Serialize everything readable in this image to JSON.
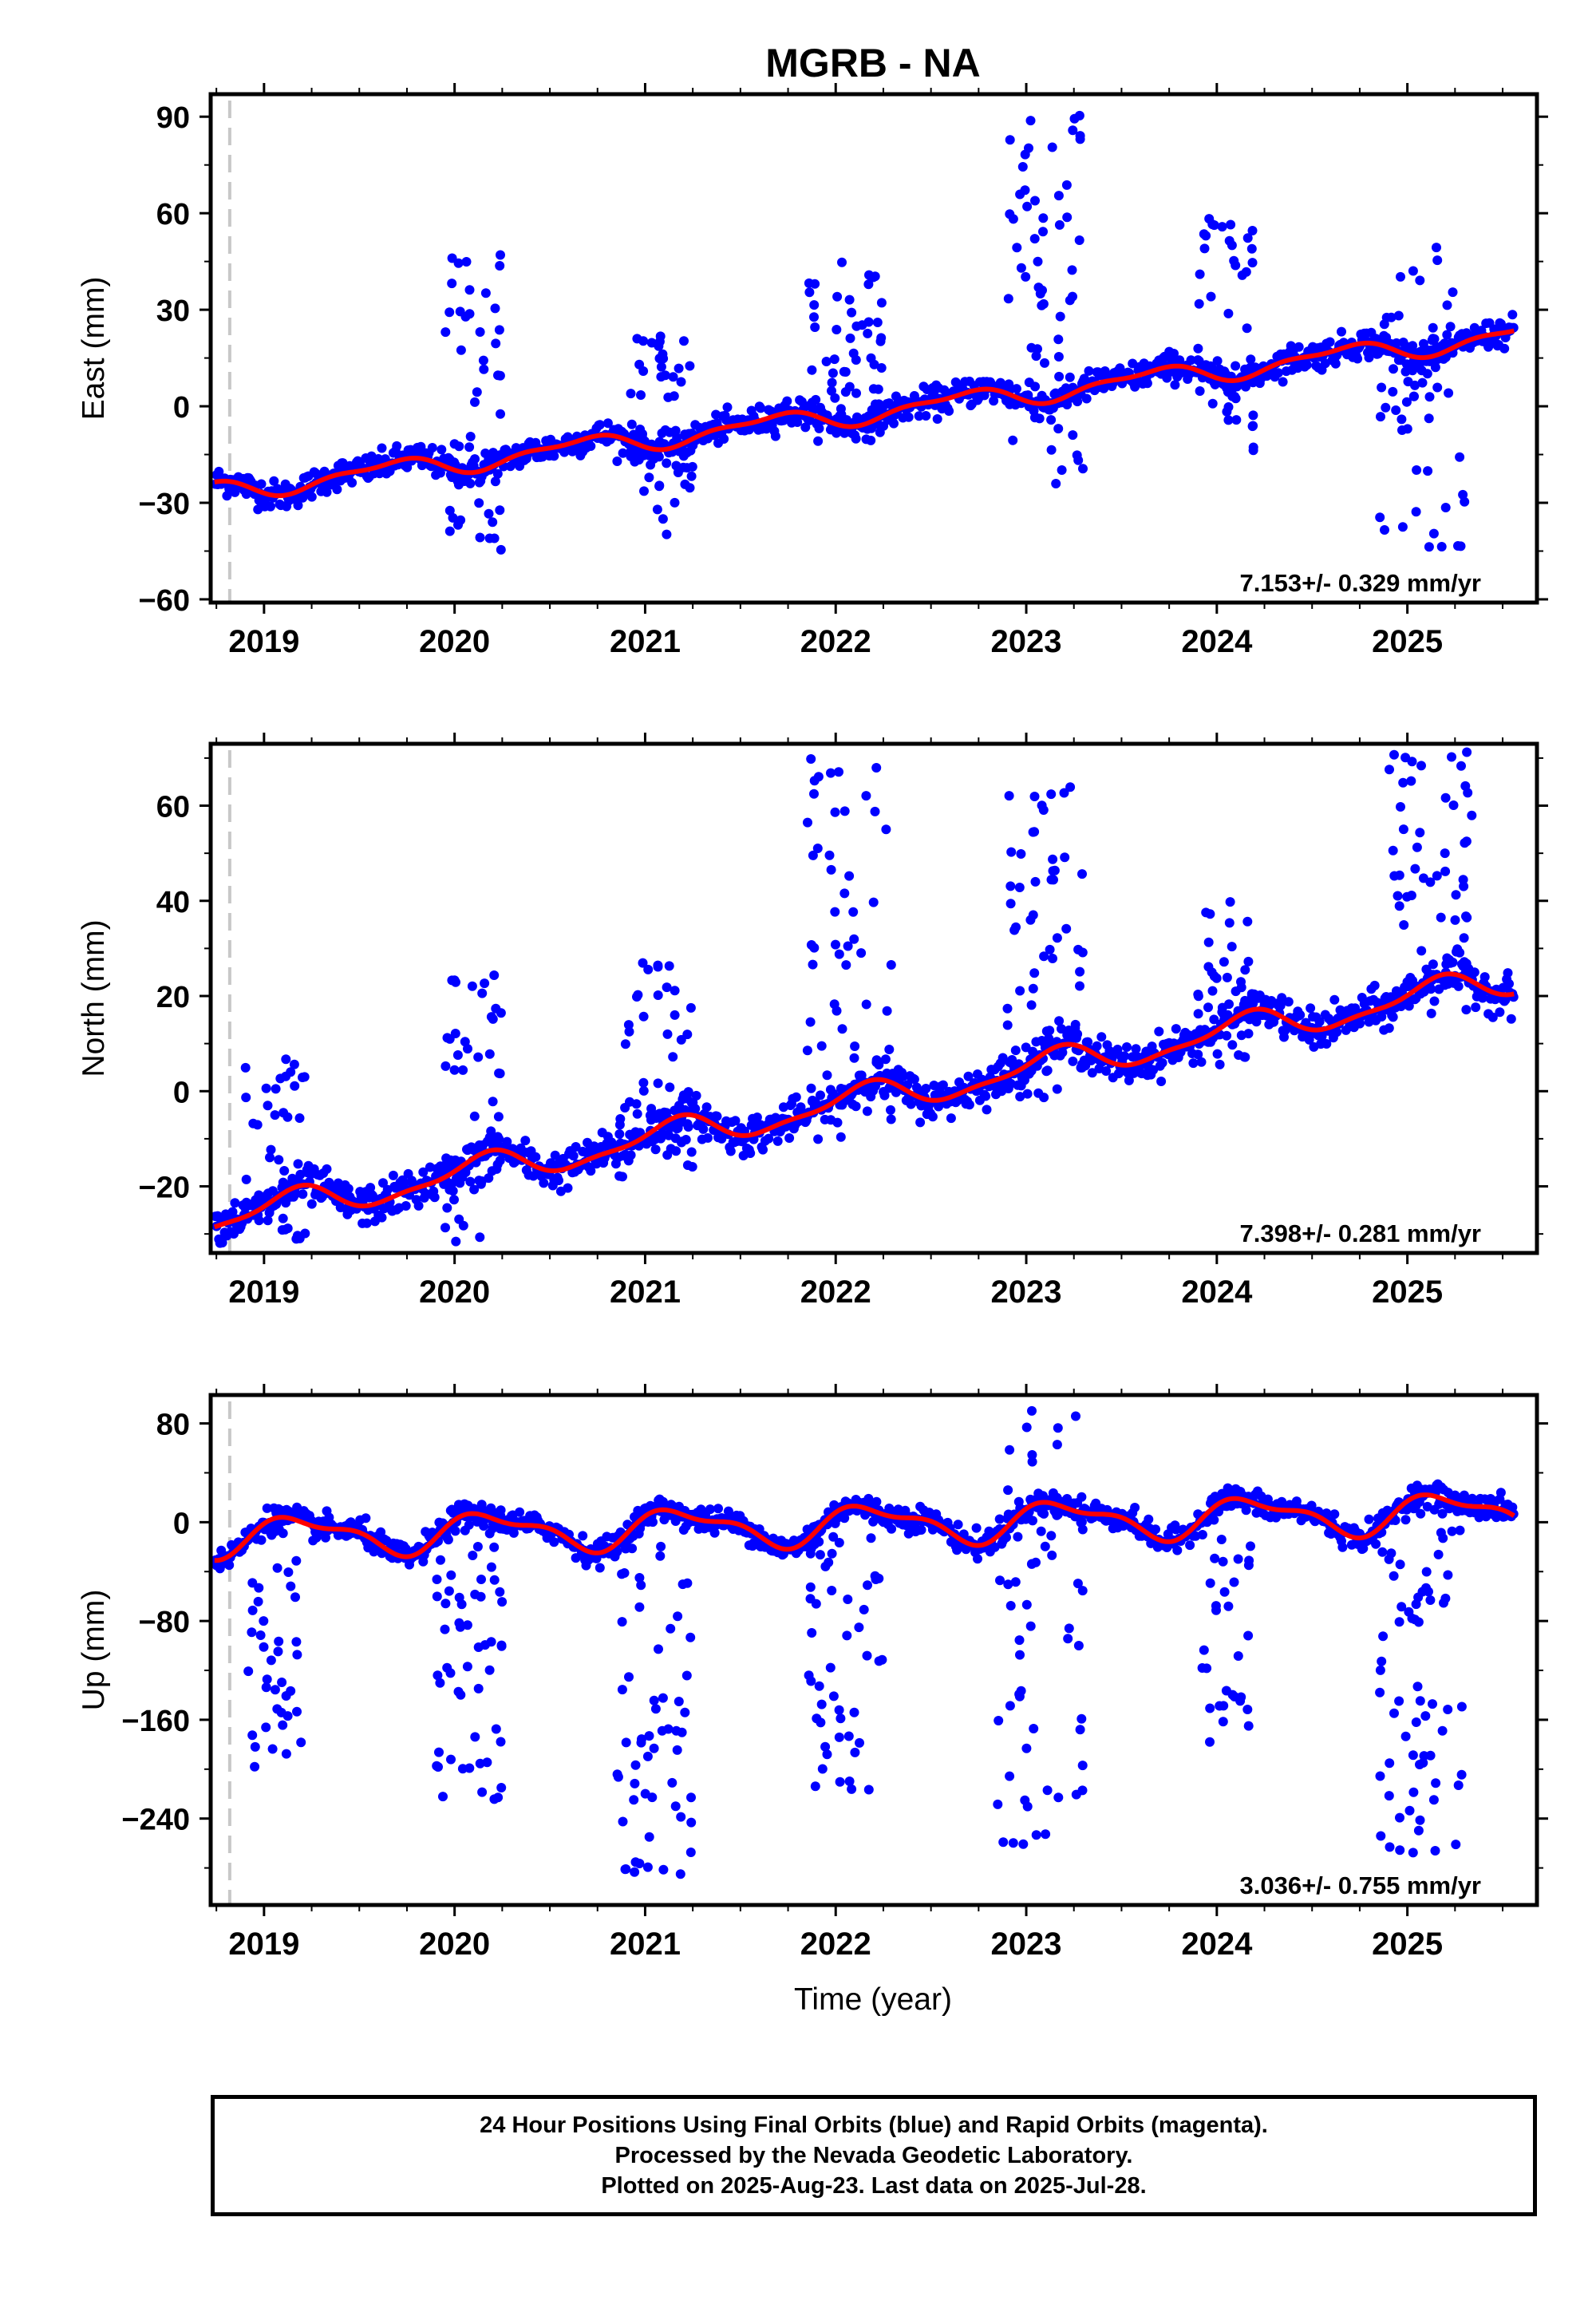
{
  "title": "MGRB - NA",
  "xlabel": "Time (year)",
  "colors": {
    "final_orbits": "#0000ff",
    "model": "#ff0000",
    "marker_line": "#c8c8c8"
  },
  "chart_data": [
    {
      "type": "scatter",
      "component": "East",
      "ylabel": "East (mm)",
      "xlim": [
        2018.72,
        2025.68
      ],
      "ylim": [
        -61,
        97
      ],
      "yticks": [
        -60,
        -30,
        0,
        30,
        60,
        90
      ],
      "xticks": [
        2019,
        2020,
        2021,
        2022,
        2023,
        2024,
        2025
      ],
      "reference_line_x": 2018.82,
      "rate_label": "7.153+/- 0.329 mm/yr",
      "rate": 7.153,
      "seasonal": {
        "intercept": -26.5,
        "amp1": 2.8,
        "phase1": 0.6,
        "amp2": 1.2,
        "phase2": 1.3
      },
      "series": [
        {
          "name": "Final Orbits",
          "color": "blue",
          "noise": 2.2,
          "bursts": [
            {
              "start": 2019.95,
              "end": 2020.25,
              "range": [
                -45,
                48
              ],
              "count": 45
            },
            {
              "start": 2020.9,
              "end": 2021.25,
              "range": [
                -40,
                22
              ],
              "count": 50
            },
            {
              "start": 2021.85,
              "end": 2022.25,
              "range": [
                -10,
                46
              ],
              "count": 55
            },
            {
              "start": 2022.9,
              "end": 2023.3,
              "range": [
                -26,
                94
              ],
              "count": 60
            },
            {
              "start": 2023.9,
              "end": 2024.2,
              "range": [
                -14,
                59
              ],
              "count": 40
            },
            {
              "start": 2024.85,
              "end": 2025.3,
              "range": [
                -44,
                52
              ],
              "count": 55
            }
          ]
        }
      ],
      "model": {
        "name": "Fit",
        "color": "red"
      }
    },
    {
      "type": "scatter",
      "component": "North",
      "ylabel": "North (mm)",
      "xlim": [
        2018.72,
        2025.68
      ],
      "ylim": [
        -34,
        73
      ],
      "yticks": [
        -20,
        0,
        20,
        40,
        60
      ],
      "xticks": [
        2019,
        2020,
        2021,
        2022,
        2023,
        2024,
        2025
      ],
      "reference_line_x": 2018.82,
      "rate_label": "7.398+/- 0.281 mm/yr",
      "rate": 7.398,
      "seasonal": {
        "intercept": -27.0,
        "amp1": 3.0,
        "phase1": 2.1,
        "amp2": 1.0,
        "phase2": 0.4
      },
      "series": [
        {
          "name": "Final Orbits",
          "color": "blue",
          "noise": 2.0,
          "bursts": [
            {
              "start": 2018.9,
              "end": 2019.25,
              "range": [
                -32,
                7
              ],
              "count": 40
            },
            {
              "start": 2019.95,
              "end": 2020.25,
              "range": [
                -33,
                28
              ],
              "count": 45
            },
            {
              "start": 2020.85,
              "end": 2021.25,
              "range": [
                -18,
                27
              ],
              "count": 55
            },
            {
              "start": 2021.85,
              "end": 2022.3,
              "range": [
                -10,
                70
              ],
              "count": 55
            },
            {
              "start": 2022.9,
              "end": 2023.3,
              "range": [
                -4,
                65
              ],
              "count": 55
            },
            {
              "start": 2023.9,
              "end": 2024.2,
              "range": [
                5,
                40
              ],
              "count": 35
            },
            {
              "start": 2024.85,
              "end": 2025.35,
              "range": [
                13,
                72
              ],
              "count": 55
            }
          ]
        }
      ],
      "model": {
        "name": "Fit",
        "color": "red"
      }
    },
    {
      "type": "scatter",
      "component": "Up",
      "ylabel": "Up (mm)",
      "xlim": [
        2018.72,
        2025.68
      ],
      "ylim": [
        -310,
        103
      ],
      "yticks": [
        -240,
        -160,
        -80,
        0,
        80
      ],
      "xticks": [
        2019,
        2020,
        2021,
        2022,
        2023,
        2024,
        2025
      ],
      "reference_line_x": 2018.82,
      "rate_label": "3.036+/- 0.755 mm/yr",
      "rate": 3.036,
      "seasonal": {
        "intercept": -12.0,
        "amp1": 14.0,
        "phase1": 0.05,
        "amp2": 6.0,
        "phase2": 0.1
      },
      "series": [
        {
          "name": "Final Orbits",
          "color": "blue",
          "noise": 5.0,
          "bursts": [
            {
              "start": 2018.9,
              "end": 2019.2,
              "range": [
                -200,
                -5
              ],
              "count": 40
            },
            {
              "start": 2019.9,
              "end": 2020.25,
              "range": [
                -230,
                10
              ],
              "count": 60
            },
            {
              "start": 2020.85,
              "end": 2021.25,
              "range": [
                -285,
                0
              ],
              "count": 60
            },
            {
              "start": 2021.85,
              "end": 2022.25,
              "range": [
                -220,
                0
              ],
              "count": 50
            },
            {
              "start": 2022.85,
              "end": 2023.3,
              "range": [
                -270,
                95
              ],
              "count": 60
            },
            {
              "start": 2023.9,
              "end": 2024.2,
              "range": [
                -180,
                -10
              ],
              "count": 30
            },
            {
              "start": 2024.85,
              "end": 2025.3,
              "range": [
                -272,
                -5
              ],
              "count": 65
            }
          ]
        }
      ],
      "model": {
        "name": "Fit",
        "color": "red"
      }
    }
  ],
  "footer": {
    "line1": "24 Hour Positions Using Final Orbits (blue) and Rapid Orbits (magenta).",
    "line2": "Processed by the Nevada Geodetic Laboratory.",
    "line3": "Plotted on 2025-Aug-23. Last data on 2025-Jul-28."
  }
}
